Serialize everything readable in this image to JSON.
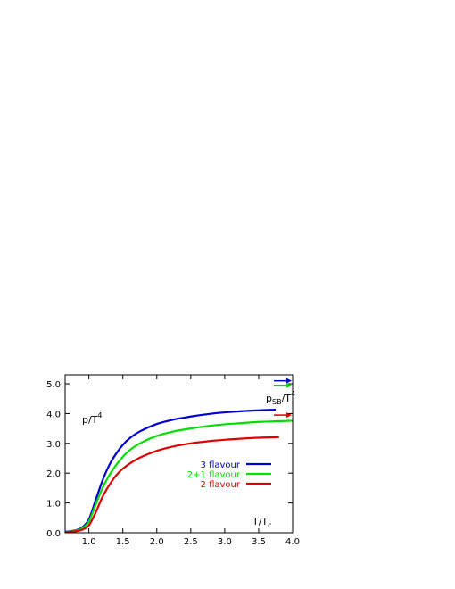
{
  "chart_data": {
    "type": "line",
    "ylabel": "p/T",
    "ylabel_exp": "4",
    "xlabel": "T/T",
    "xlabel_sub": "c",
    "sb_label": "p",
    "sb_label_sub": "SB",
    "sb_label_rest": "/T",
    "sb_label_exp": "4",
    "xlim": [
      0.65,
      4.0
    ],
    "ylim": [
      0.0,
      5.3
    ],
    "x_ticks": [
      1.0,
      1.5,
      2.0,
      2.5,
      3.0,
      3.5,
      4.0
    ],
    "x_tick_labels": [
      "1.0",
      "1.5",
      "2.0",
      "2.5",
      "3.0",
      "3.5",
      "4.0"
    ],
    "y_ticks": [
      0.0,
      1.0,
      2.0,
      3.0,
      4.0,
      5.0
    ],
    "y_tick_labels": [
      "0.0",
      "1.0",
      "2.0",
      "3.0",
      "4.0",
      "5.0"
    ],
    "grid": false,
    "legend_position": "lower-right",
    "series": [
      {
        "name": "3 flavour",
        "color": "#0000cc",
        "x": [
          0.65,
          0.8,
          0.9,
          1.0,
          1.1,
          1.2,
          1.3,
          1.4,
          1.5,
          1.6,
          1.75,
          2.0,
          2.25,
          2.5,
          2.75,
          3.0,
          3.25,
          3.5,
          3.75
        ],
        "y": [
          0.03,
          0.08,
          0.18,
          0.45,
          1.1,
          1.75,
          2.27,
          2.65,
          2.95,
          3.17,
          3.4,
          3.65,
          3.8,
          3.9,
          3.98,
          4.04,
          4.08,
          4.11,
          4.13
        ],
        "sb_limit": 5.2,
        "sb_arrow_y": 5.1
      },
      {
        "name": "2+1 flavour",
        "color": "#00dd00",
        "x": [
          0.65,
          0.8,
          0.9,
          1.0,
          1.1,
          1.2,
          1.3,
          1.4,
          1.5,
          1.6,
          1.75,
          2.0,
          2.25,
          2.5,
          2.75,
          3.0,
          3.25,
          3.5,
          3.75,
          4.0
        ],
        "y": [
          0.02,
          0.07,
          0.15,
          0.38,
          0.95,
          1.5,
          1.93,
          2.27,
          2.55,
          2.77,
          3.0,
          3.25,
          3.4,
          3.5,
          3.58,
          3.64,
          3.68,
          3.72,
          3.74,
          3.76
        ],
        "sb_limit": 4.95,
        "sb_arrow_y": 4.95
      },
      {
        "name": "2 flavour",
        "color": "#dd0000",
        "x": [
          0.65,
          0.8,
          0.9,
          1.0,
          1.1,
          1.2,
          1.3,
          1.4,
          1.5,
          1.6,
          1.75,
          2.0,
          2.25,
          2.5,
          2.75,
          3.0,
          3.25,
          3.5,
          3.8
        ],
        "y": [
          0.02,
          0.05,
          0.1,
          0.25,
          0.68,
          1.2,
          1.6,
          1.92,
          2.15,
          2.32,
          2.52,
          2.75,
          2.9,
          3.0,
          3.07,
          3.12,
          3.16,
          3.19,
          3.21
        ],
        "sb_limit": 3.95,
        "sb_arrow_y": 3.95
      }
    ]
  }
}
